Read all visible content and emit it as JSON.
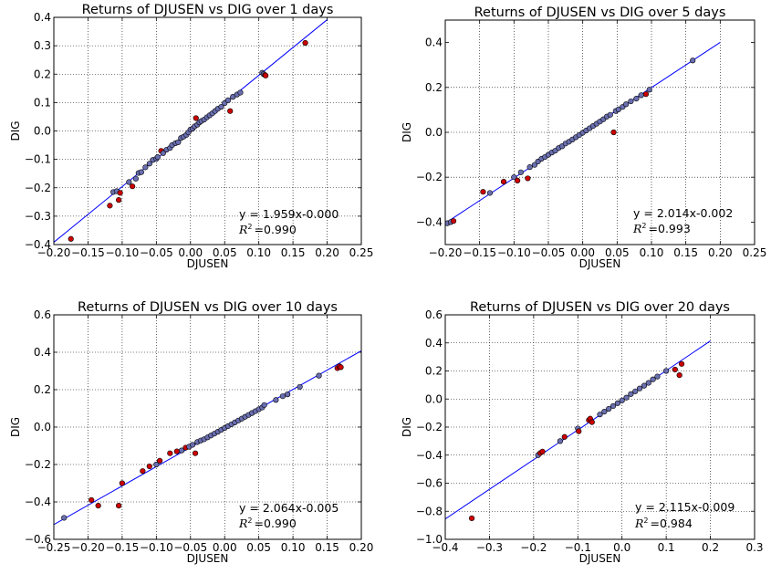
{
  "chart_data": [
    {
      "type": "scatter",
      "title": "Returns of DJUSEN vs DIG over 1 days",
      "xlabel": "DJUSEN",
      "ylabel": "DIG",
      "xlim": [
        -0.2,
        0.25
      ],
      "ylim": [
        -0.4,
        0.4
      ],
      "xticks": [
        "-0.20",
        "-0.15",
        "-0.10",
        "-0.05",
        "0.00",
        "0.05",
        "0.10",
        "0.15",
        "0.20",
        "0.25"
      ],
      "yticks": [
        "-0.4",
        "-0.3",
        "-0.2",
        "-0.1",
        "0.0",
        "0.1",
        "0.2",
        "0.3",
        "0.4"
      ],
      "grid": true,
      "fit": {
        "slope": 1.959,
        "intercept": -0.0,
        "x_range": [
          -0.2,
          0.2
        ]
      },
      "annotation": {
        "equation": "y = 1.959x-0.000",
        "r2_value": "=0.990"
      },
      "points": [
        [
          -0.175,
          -0.38
        ],
        [
          -0.118,
          -0.263
        ],
        [
          -0.113,
          -0.215
        ],
        [
          -0.108,
          -0.212
        ],
        [
          -0.105,
          -0.243
        ],
        [
          -0.103,
          -0.218
        ],
        [
          -0.09,
          -0.18
        ],
        [
          -0.085,
          -0.195
        ],
        [
          -0.08,
          -0.168
        ],
        [
          -0.076,
          -0.148
        ],
        [
          -0.072,
          -0.145
        ],
        [
          -0.066,
          -0.128
        ],
        [
          -0.06,
          -0.115
        ],
        [
          -0.055,
          -0.102
        ],
        [
          -0.05,
          -0.098
        ],
        [
          -0.048,
          -0.092
        ],
        [
          -0.043,
          -0.07
        ],
        [
          -0.04,
          -0.078
        ],
        [
          -0.035,
          -0.066
        ],
        [
          -0.03,
          -0.06
        ],
        [
          -0.027,
          -0.05
        ],
        [
          -0.022,
          -0.043
        ],
        [
          -0.018,
          -0.04
        ],
        [
          -0.014,
          -0.025
        ],
        [
          -0.01,
          -0.02
        ],
        [
          -0.006,
          -0.014
        ],
        [
          -0.003,
          -0.005
        ],
        [
          0.0,
          0.005
        ],
        [
          0.003,
          0.008
        ],
        [
          0.006,
          0.016
        ],
        [
          0.008,
          0.045
        ],
        [
          0.01,
          0.022
        ],
        [
          0.013,
          0.03
        ],
        [
          0.016,
          0.035
        ],
        [
          0.02,
          0.04
        ],
        [
          0.024,
          0.048
        ],
        [
          0.028,
          0.055
        ],
        [
          0.032,
          0.062
        ],
        [
          0.036,
          0.07
        ],
        [
          0.04,
          0.078
        ],
        [
          0.045,
          0.085
        ],
        [
          0.05,
          0.098
        ],
        [
          0.055,
          0.108
        ],
        [
          0.058,
          0.07
        ],
        [
          0.062,
          0.12
        ],
        [
          0.068,
          0.128
        ],
        [
          0.073,
          0.135
        ],
        [
          0.105,
          0.205
        ],
        [
          0.107,
          0.2
        ],
        [
          0.109,
          0.197
        ],
        [
          0.11,
          0.195
        ],
        [
          0.168,
          0.31
        ]
      ]
    },
    {
      "type": "scatter",
      "title": "Returns of DJUSEN vs DIG over 5 days",
      "xlabel": "DJUSEN",
      "ylabel": "DIG",
      "xlim": [
        -0.2,
        0.25
      ],
      "ylim": [
        -0.5,
        0.5
      ],
      "xticks": [
        "-0.20",
        "-0.15",
        "-0.10",
        "-0.05",
        "0.00",
        "0.05",
        "0.10",
        "0.15",
        "0.20",
        "0.25"
      ],
      "yticks": [
        "-0.4",
        "-0.2",
        "0.0",
        "0.2",
        "0.4"
      ],
      "grid": true,
      "fit": {
        "slope": 2.014,
        "intercept": -0.002,
        "x_range": [
          -0.2,
          0.2
        ]
      },
      "annotation": {
        "equation": "y = 2.014x-0.002",
        "r2_value": "=0.993"
      },
      "points": [
        [
          -0.197,
          -0.405
        ],
        [
          -0.192,
          -0.4
        ],
        [
          -0.188,
          -0.395
        ],
        [
          -0.145,
          -0.265
        ],
        [
          -0.135,
          -0.27
        ],
        [
          -0.115,
          -0.22
        ],
        [
          -0.1,
          -0.2
        ],
        [
          -0.095,
          -0.215
        ],
        [
          -0.09,
          -0.178
        ],
        [
          -0.08,
          -0.205
        ],
        [
          -0.077,
          -0.155
        ],
        [
          -0.07,
          -0.145
        ],
        [
          -0.065,
          -0.13
        ],
        [
          -0.06,
          -0.118
        ],
        [
          -0.055,
          -0.11
        ],
        [
          -0.05,
          -0.1
        ],
        [
          -0.045,
          -0.09
        ],
        [
          -0.04,
          -0.082
        ],
        [
          -0.035,
          -0.07
        ],
        [
          -0.03,
          -0.062
        ],
        [
          -0.025,
          -0.05
        ],
        [
          -0.02,
          -0.042
        ],
        [
          -0.015,
          -0.032
        ],
        [
          -0.01,
          -0.022
        ],
        [
          -0.005,
          -0.012
        ],
        [
          0.0,
          -0.002
        ],
        [
          0.005,
          0.008
        ],
        [
          0.01,
          0.018
        ],
        [
          0.015,
          0.028
        ],
        [
          0.02,
          0.038
        ],
        [
          0.025,
          0.048
        ],
        [
          0.03,
          0.058
        ],
        [
          0.035,
          0.07
        ],
        [
          0.04,
          0.078
        ],
        [
          0.045,
          0.0
        ],
        [
          0.048,
          0.095
        ],
        [
          0.052,
          0.102
        ],
        [
          0.058,
          0.113
        ],
        [
          0.063,
          0.125
        ],
        [
          0.07,
          0.138
        ],
        [
          0.078,
          0.15
        ],
        [
          0.085,
          0.165
        ],
        [
          0.092,
          0.17
        ],
        [
          0.097,
          0.19
        ],
        [
          0.16,
          0.32
        ]
      ]
    },
    {
      "type": "scatter",
      "title": "Returns of DJUSEN vs DIG over 10 days",
      "xlabel": "DJUSEN",
      "ylabel": "DIG",
      "xlim": [
        -0.25,
        0.2
      ],
      "ylim": [
        -0.6,
        0.6
      ],
      "xticks": [
        "-0.25",
        "-0.20",
        "-0.15",
        "-0.10",
        "-0.05",
        "0.00",
        "0.05",
        "0.10",
        "0.15",
        "0.20"
      ],
      "yticks": [
        "-0.6",
        "-0.4",
        "-0.2",
        "0.0",
        "0.2",
        "0.4",
        "0.6"
      ],
      "grid": true,
      "fit": {
        "slope": 2.064,
        "intercept": -0.005,
        "x_range": [
          -0.25,
          0.2
        ]
      },
      "annotation": {
        "equation": "y = 2.064x-0.005",
        "r2_value": "=0.990"
      },
      "points": [
        [
          -0.235,
          -0.485
        ],
        [
          -0.195,
          -0.39
        ],
        [
          -0.185,
          -0.42
        ],
        [
          -0.155,
          -0.42
        ],
        [
          -0.15,
          -0.3
        ],
        [
          -0.12,
          -0.235
        ],
        [
          -0.11,
          -0.21
        ],
        [
          -0.1,
          -0.2
        ],
        [
          -0.095,
          -0.18
        ],
        [
          -0.08,
          -0.14
        ],
        [
          -0.07,
          -0.13
        ],
        [
          -0.063,
          -0.125
        ],
        [
          -0.057,
          -0.11
        ],
        [
          -0.052,
          -0.105
        ],
        [
          -0.047,
          -0.095
        ],
        [
          -0.043,
          -0.14
        ],
        [
          -0.04,
          -0.08
        ],
        [
          -0.035,
          -0.072
        ],
        [
          -0.03,
          -0.065
        ],
        [
          -0.025,
          -0.055
        ],
        [
          -0.02,
          -0.045
        ],
        [
          -0.015,
          -0.035
        ],
        [
          -0.01,
          -0.025
        ],
        [
          -0.005,
          -0.015
        ],
        [
          0.0,
          -0.005
        ],
        [
          0.005,
          0.005
        ],
        [
          0.01,
          0.015
        ],
        [
          0.015,
          0.025
        ],
        [
          0.02,
          0.035
        ],
        [
          0.025,
          0.045
        ],
        [
          0.03,
          0.055
        ],
        [
          0.035,
          0.065
        ],
        [
          0.04,
          0.075
        ],
        [
          0.045,
          0.085
        ],
        [
          0.05,
          0.095
        ],
        [
          0.055,
          0.105
        ],
        [
          0.058,
          0.118
        ],
        [
          0.075,
          0.145
        ],
        [
          0.085,
          0.165
        ],
        [
          0.092,
          0.175
        ],
        [
          0.11,
          0.215
        ],
        [
          0.138,
          0.275
        ],
        [
          0.165,
          0.315
        ],
        [
          0.168,
          0.325
        ],
        [
          0.17,
          0.32
        ]
      ]
    },
    {
      "type": "scatter",
      "title": "Returns of DJUSEN vs DIG over 20 days",
      "xlabel": "DJUSEN",
      "ylabel": "DIG",
      "xlim": [
        -0.4,
        0.3
      ],
      "ylim": [
        -1.0,
        0.6
      ],
      "xticks": [
        "-0.4",
        "-0.3",
        "-0.2",
        "-0.1",
        "0.0",
        "0.1",
        "0.2",
        "0.3"
      ],
      "yticks": [
        "-1.0",
        "-0.8",
        "-0.6",
        "-0.4",
        "-0.2",
        "0.0",
        "0.2",
        "0.4",
        "0.6"
      ],
      "grid": true,
      "fit": {
        "slope": 2.115,
        "intercept": -0.009,
        "x_range": [
          -0.4,
          0.2
        ]
      },
      "annotation": {
        "equation": "y = 2.115x-0.009",
        "r2_value": "=0.984"
      },
      "points": [
        [
          -0.34,
          -0.85
        ],
        [
          -0.19,
          -0.4
        ],
        [
          -0.185,
          -0.385
        ],
        [
          -0.18,
          -0.375
        ],
        [
          -0.14,
          -0.3
        ],
        [
          -0.13,
          -0.27
        ],
        [
          -0.1,
          -0.21
        ],
        [
          -0.098,
          -0.23
        ],
        [
          -0.075,
          -0.15
        ],
        [
          -0.072,
          -0.14
        ],
        [
          -0.068,
          -0.165
        ],
        [
          -0.05,
          -0.11
        ],
        [
          -0.04,
          -0.09
        ],
        [
          -0.03,
          -0.07
        ],
        [
          -0.02,
          -0.05
        ],
        [
          -0.01,
          -0.03
        ],
        [
          0.0,
          -0.01
        ],
        [
          0.01,
          0.01
        ],
        [
          0.02,
          0.035
        ],
        [
          0.03,
          0.055
        ],
        [
          0.04,
          0.075
        ],
        [
          0.05,
          0.095
        ],
        [
          0.06,
          0.115
        ],
        [
          0.07,
          0.14
        ],
        [
          0.08,
          0.16
        ],
        [
          0.1,
          0.2
        ],
        [
          0.12,
          0.21
        ],
        [
          0.13,
          0.17
        ],
        [
          0.135,
          0.25
        ]
      ]
    }
  ],
  "colors": {
    "marker_fill": "#cc0000",
    "marker_highlight": "#6a6fb0",
    "fit_line": "#0000ff",
    "grid": "#000000"
  }
}
